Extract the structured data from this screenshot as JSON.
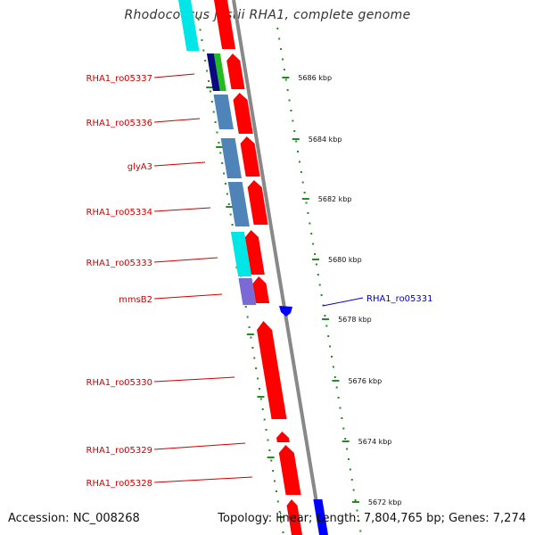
{
  "title": "Rhodococcus jostii RHA1, complete genome",
  "footer": {
    "accession": "Accession: NC_008268",
    "topology": "Topology: linear; Length: 7,804,765 bp; Genes: 7,274"
  },
  "scale": {
    "labels": [
      "5686 kbp",
      "5684 kbp",
      "5682 kbp",
      "5680 kbp",
      "5678 kbp",
      "5676 kbp",
      "5674 kbp",
      "5672 kbp"
    ]
  },
  "gene_labels": [
    {
      "name": "RHA1_ro05337",
      "color": "#cc0000"
    },
    {
      "name": "RHA1_ro05336",
      "color": "#cc0000"
    },
    {
      "name": "glyA3",
      "color": "#cc0000"
    },
    {
      "name": "RHA1_ro05334",
      "color": "#cc0000"
    },
    {
      "name": "RHA1_ro05333",
      "color": "#cc0000"
    },
    {
      "name": "mmsB2",
      "color": "#cc0000"
    },
    {
      "name": "RHA1_ro05331",
      "color": "#0000cc"
    },
    {
      "name": "RHA1_ro05330",
      "color": "#cc0000"
    },
    {
      "name": "RHA1_ro05329",
      "color": "#cc0000"
    },
    {
      "name": "RHA1_ro05328",
      "color": "#cc0000"
    }
  ],
  "colors": {
    "forward_gene": "#ff0000",
    "reverse_gene": "#0000ff",
    "backbone": "#888888",
    "tick": "#228B22",
    "cog_cyan": "#00e5e5",
    "cog_steelblue": "#4f84b8",
    "cog_navy": "#0a0a80",
    "cog_green": "#22bb22",
    "cog_purple": "#7a6ad6"
  }
}
